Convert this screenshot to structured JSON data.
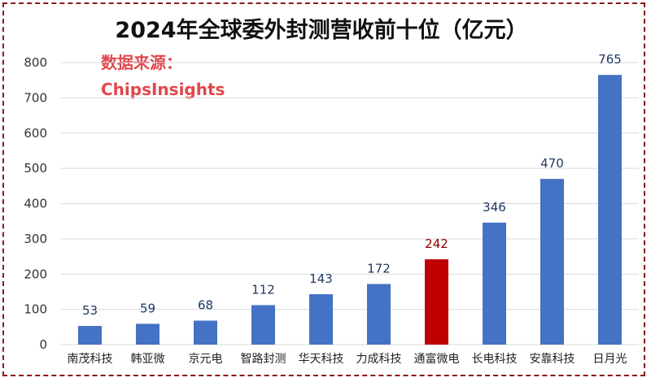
{
  "chart_data": {
    "type": "bar",
    "title": "2024年全球委外封测营收前十位（亿元）",
    "source_line1": "数据来源：",
    "source_line2": "ChipsInsights",
    "categories": [
      "南茂科技",
      "韩亚微",
      "京元电",
      "智路封测",
      "华天科技",
      "力成科技",
      "通富微电",
      "长电科技",
      "安靠科技",
      "日月光"
    ],
    "values": [
      53,
      59,
      68,
      112,
      143,
      172,
      242,
      346,
      470,
      765
    ],
    "ylim": [
      0,
      800
    ],
    "yticks": [
      0,
      100,
      200,
      300,
      400,
      500,
      600,
      700,
      800
    ],
    "grid": true,
    "legend": "none",
    "bar_color": "#4472c4",
    "highlight_index": 6,
    "highlight_color": "#c00000",
    "label_color": "#1f3864",
    "highlight_label_color": "#8b0000",
    "source_color": "#e0474c"
  }
}
